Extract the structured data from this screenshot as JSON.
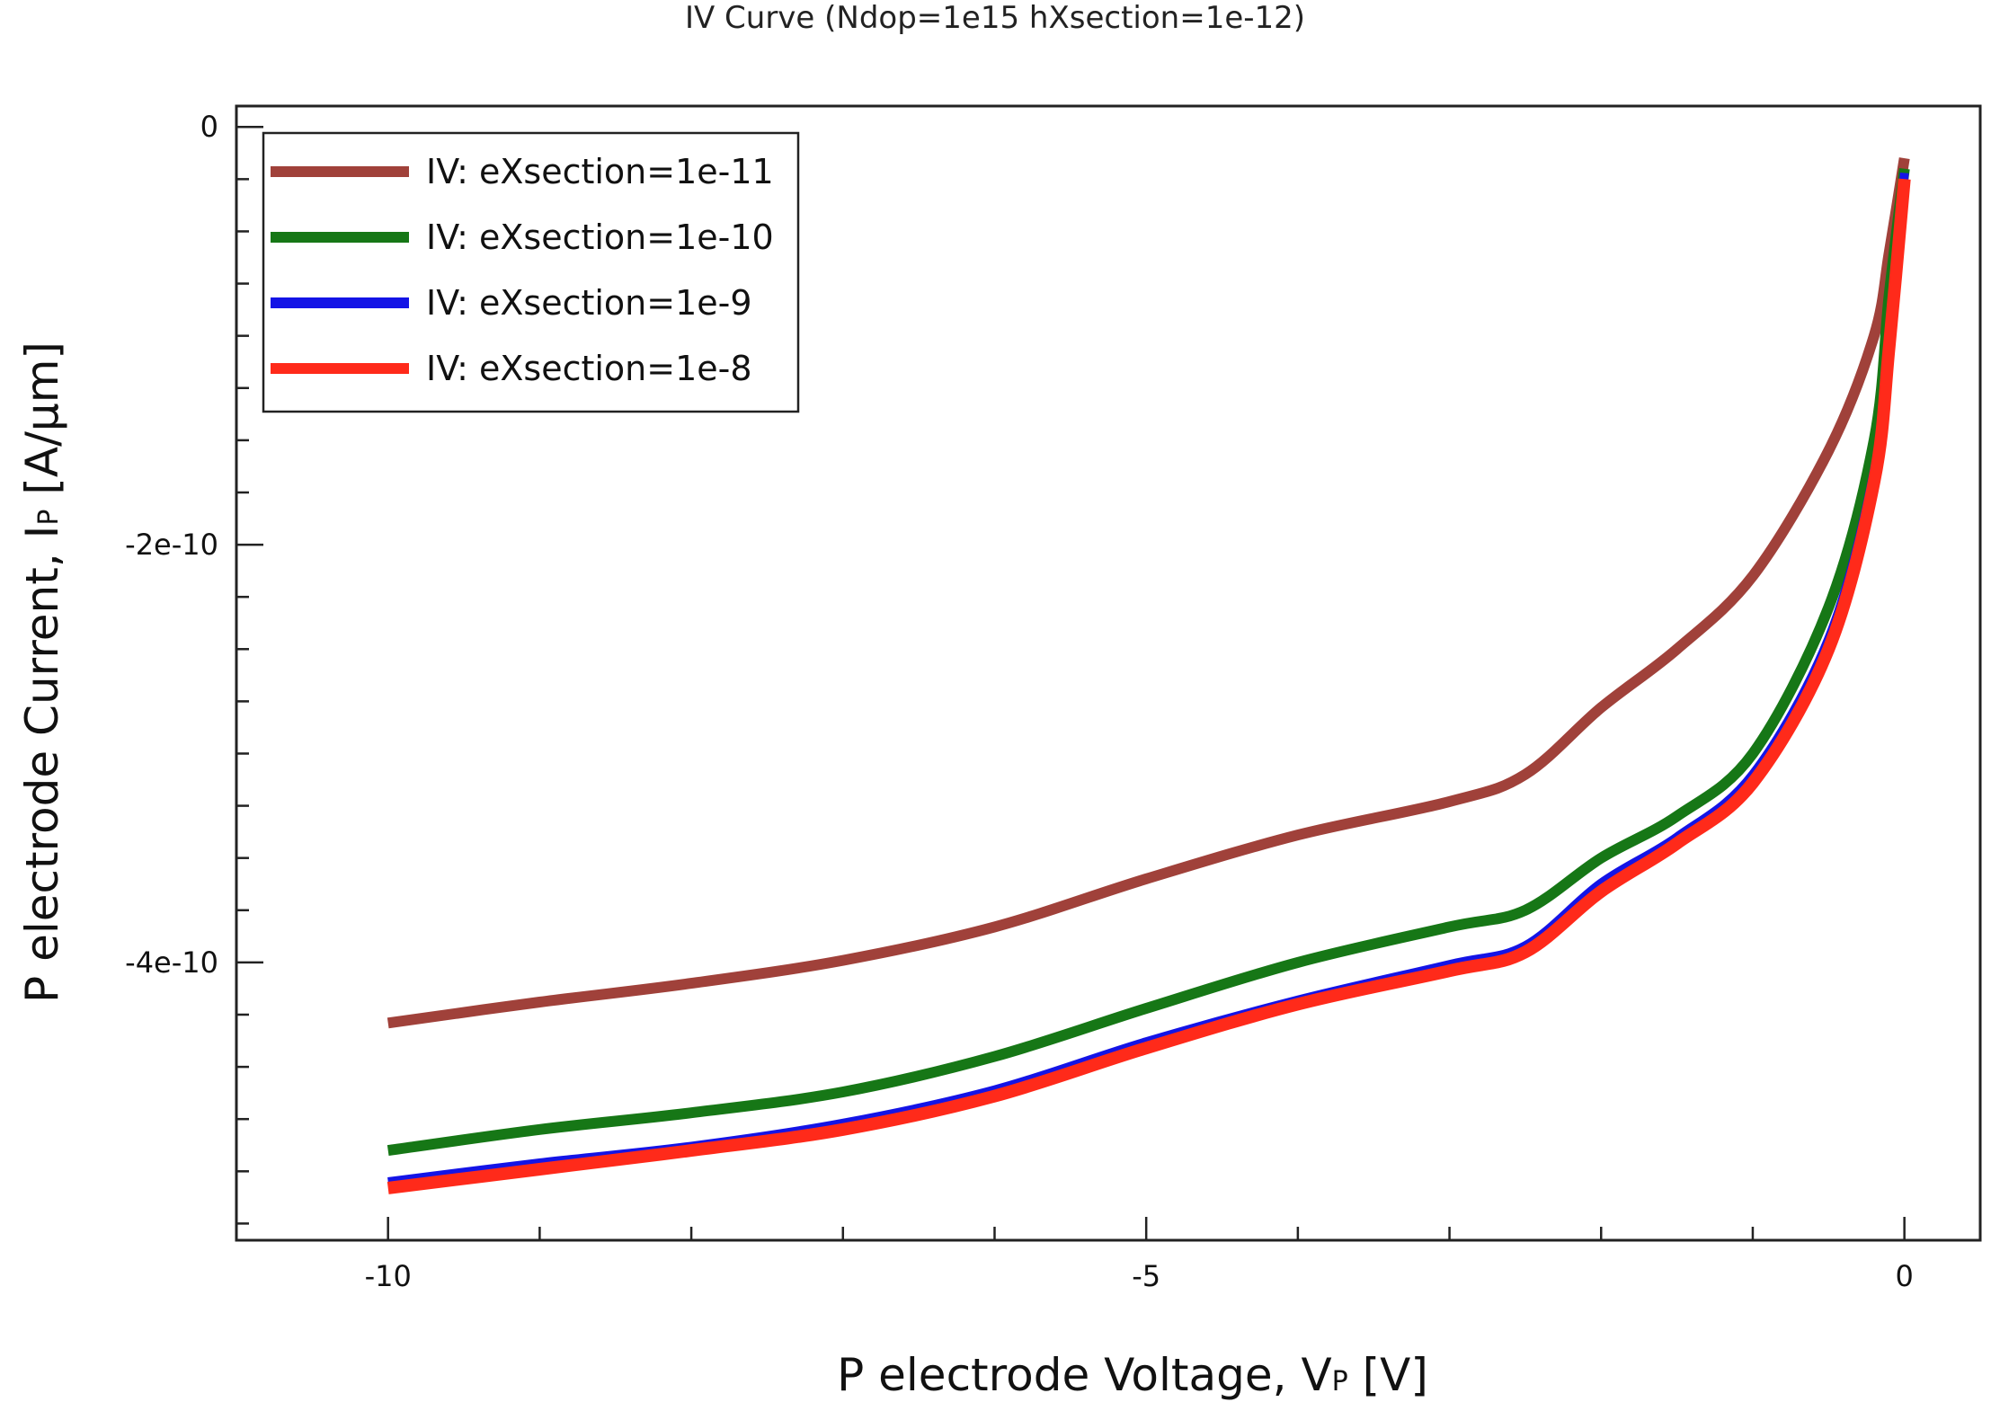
{
  "chart_data": {
    "type": "line",
    "title": "IV Curve (Ndop=1e15 hXsection=1e-12)",
    "xlabel": {
      "main": "P electrode Voltage, V",
      "sub": "P",
      "unit": " [V]"
    },
    "ylabel": {
      "main": "P electrode Current, I",
      "sub": "P",
      "unit": " [A/µm]"
    },
    "xlim": [
      -11.0,
      0.5
    ],
    "ylim": [
      -5.33e-10,
      1e-11
    ],
    "x_ticks": [
      {
        "value": -10,
        "label": "-10"
      },
      {
        "value": -5,
        "label": "-5"
      },
      {
        "value": 0,
        "label": "0"
      }
    ],
    "y_ticks": [
      {
        "value": 0,
        "label": "0"
      },
      {
        "value": -2e-10,
        "label": "-2e-10"
      },
      {
        "value": -4e-10,
        "label": "-4e-10"
      }
    ],
    "legend_position": "top-left",
    "grid": false,
    "series": [
      {
        "name": "IV: eXsection=1e-11",
        "color": "#a0413a",
        "points": [
          [
            -10,
            -4.29e-10
          ],
          [
            -9,
            -4.19e-10
          ],
          [
            -8,
            -4.1e-10
          ],
          [
            -7,
            -3.99e-10
          ],
          [
            -6,
            -3.83e-10
          ],
          [
            -5,
            -3.6e-10
          ],
          [
            -4,
            -3.39e-10
          ],
          [
            -3,
            -3.23e-10
          ],
          [
            -2.5,
            -3.1e-10
          ],
          [
            -2,
            -2.78e-10
          ],
          [
            -1.5,
            -2.5e-10
          ],
          [
            -1,
            -2.15e-10
          ],
          [
            -0.5,
            -1.55e-10
          ],
          [
            -0.2,
            -1e-10
          ],
          [
            -0.1,
            -6e-11
          ],
          [
            0,
            -1.5e-11
          ]
        ]
      },
      {
        "name": "IV: eXsection=1e-10",
        "color": "#167716",
        "points": [
          [
            -10,
            -4.9e-10
          ],
          [
            -9,
            -4.8e-10
          ],
          [
            -8,
            -4.72e-10
          ],
          [
            -7,
            -4.62e-10
          ],
          [
            -6,
            -4.45e-10
          ],
          [
            -5,
            -4.22e-10
          ],
          [
            -4,
            -4e-10
          ],
          [
            -3,
            -3.83e-10
          ],
          [
            -2.5,
            -3.75e-10
          ],
          [
            -2,
            -3.5e-10
          ],
          [
            -1.5,
            -3.3e-10
          ],
          [
            -1,
            -3e-10
          ],
          [
            -0.5,
            -2.3e-10
          ],
          [
            -0.2,
            -1.5e-10
          ],
          [
            -0.1,
            -8e-11
          ],
          [
            0,
            -2e-11
          ]
        ]
      },
      {
        "name": "IV: eXsection=1e-9",
        "color": "#1414e6",
        "points": [
          [
            -10,
            -5.05e-10
          ],
          [
            -9,
            -4.96e-10
          ],
          [
            -8,
            -4.88e-10
          ],
          [
            -7,
            -4.77e-10
          ],
          [
            -6,
            -4.61e-10
          ],
          [
            -5,
            -4.38e-10
          ],
          [
            -4,
            -4.18e-10
          ],
          [
            -3,
            -4.01e-10
          ],
          [
            -2.5,
            -3.92e-10
          ],
          [
            -2,
            -3.62e-10
          ],
          [
            -1.5,
            -3.4e-10
          ],
          [
            -1,
            -3.1e-10
          ],
          [
            -0.5,
            -2.45e-10
          ],
          [
            -0.2,
            -1.65e-10
          ],
          [
            -0.1,
            -1e-10
          ],
          [
            0,
            -2.2e-11
          ]
        ]
      },
      {
        "name": "IV: eXsection=1e-8",
        "color": "#ff2a1a",
        "points": [
          [
            -10,
            -5.08e-10
          ],
          [
            -9,
            -4.99e-10
          ],
          [
            -8,
            -4.9e-10
          ],
          [
            -7,
            -4.8e-10
          ],
          [
            -6,
            -4.64e-10
          ],
          [
            -5,
            -4.41e-10
          ],
          [
            -4,
            -4.2e-10
          ],
          [
            -3,
            -4.04e-10
          ],
          [
            -2.5,
            -3.95e-10
          ],
          [
            -2,
            -3.66e-10
          ],
          [
            -1.5,
            -3.43e-10
          ],
          [
            -1,
            -3.14e-10
          ],
          [
            -0.5,
            -2.5e-10
          ],
          [
            -0.2,
            -1.7e-10
          ],
          [
            -0.1,
            -1.05e-10
          ],
          [
            0,
            -2.5e-11
          ]
        ]
      }
    ]
  }
}
